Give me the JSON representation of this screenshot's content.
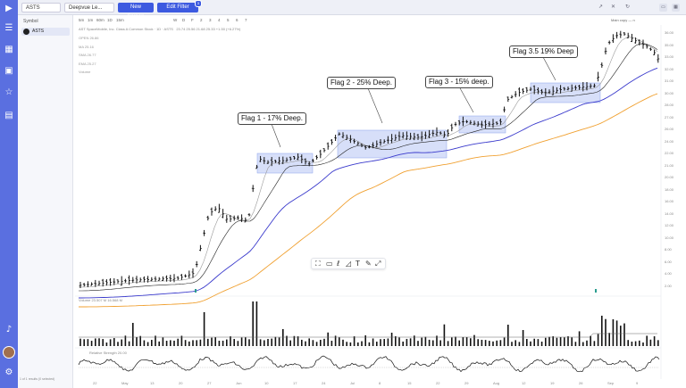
{
  "tabs": {
    "astv": "ASTS",
    "deepvue": "Deepvue Le...",
    "new_screen": "New Screen",
    "edit_filter": "Edit Filter",
    "filter_count": "3"
  },
  "timeframes": [
    "5m",
    "1m",
    "60m",
    "1D",
    "15m",
    "W",
    "D",
    "F",
    "2",
    "3",
    "4",
    "5",
    "6",
    "7"
  ],
  "panel": {
    "symbol_header": "Symbol",
    "symbol": "ASTS",
    "footer": "1 of 1 results (0 selected)"
  },
  "chart": {
    "header": "AST SpaceMobile, Inc. Class A Common Stock · 1D · ASTS",
    "ohlc": "23.74  25.56  21.68  25.33 +1.50 (+6.27%)",
    "legend": [
      "OPEN  26.86",
      "MA  25.16",
      "SMA  26.77",
      "EMA  25.27",
      "Volume"
    ],
    "volume_label": "Volume  23.507 M  16.568 M",
    "osc_label": "Relative Strength  20.00",
    "right_widget": "Main copy — n",
    "x_labels": [
      "22",
      "May",
      "13",
      "20",
      "27",
      "Jun",
      "10",
      "17",
      "24",
      "Jul",
      "8",
      "15",
      "22",
      "29",
      "Aug",
      "12",
      "19",
      "26",
      "Sep",
      "9"
    ],
    "y_labels": [
      "36.00",
      "35.00",
      "33.00",
      "32.00",
      "31.00",
      "30.00",
      "28.00",
      "27.00",
      "26.00",
      "24.00",
      "22.00",
      "21.00",
      "20.00",
      "18.00",
      "16.00",
      "14.00",
      "12.00",
      "10.00",
      "8.00",
      "6.00",
      "4.00",
      "2.00"
    ]
  },
  "annotations": {
    "flag1": "Flag 1 - 17% Deep.",
    "flag2": "Flag 2 - 25% Deep.",
    "flag3": "Flag 3 - 15% deep.",
    "flag35": "Flag 3.5 19% Deep"
  },
  "colors": {
    "accent": "#3d5ae0",
    "sidebar": "#5a6fe0",
    "ma_blue": "#3a3acc",
    "ma_orange": "#f0a030",
    "flag_fill": "#c9d4f7"
  },
  "icons": [
    "play-icon",
    "list-icon",
    "grid-icon",
    "chart-icon",
    "star-icon",
    "alert-icon",
    "bell-icon",
    "user-icon",
    "refresh-icon",
    "twitter-icon",
    "share-icon",
    "settings-icon"
  ]
}
